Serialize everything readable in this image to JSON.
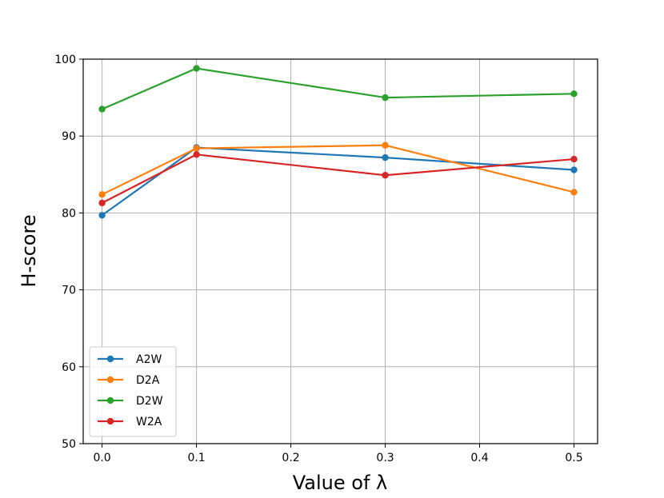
{
  "chart_data": {
    "type": "line",
    "xlabel": "Value of λ",
    "ylabel": "H-score",
    "x": [
      0.0,
      0.1,
      0.3,
      0.5
    ],
    "xlim": [
      -0.02,
      0.525
    ],
    "ylim": [
      50,
      100
    ],
    "xticks": [
      "0.0",
      "0.1",
      "0.2",
      "0.3",
      "0.4",
      "0.5"
    ],
    "xtick_values": [
      0.0,
      0.1,
      0.2,
      0.3,
      0.4,
      0.5
    ],
    "yticks": [
      "50",
      "60",
      "70",
      "80",
      "90",
      "100"
    ],
    "ytick_values": [
      50,
      60,
      70,
      80,
      90,
      100
    ],
    "grid": true,
    "legend_position": "lower-left",
    "series": [
      {
        "name": "A2W",
        "color": "#1f77b4",
        "values": [
          79.7,
          88.5,
          87.2,
          85.6
        ]
      },
      {
        "name": "D2A",
        "color": "#ff7f0e",
        "values": [
          82.4,
          88.4,
          88.8,
          82.7
        ]
      },
      {
        "name": "D2W",
        "color": "#2ca02c",
        "values": [
          93.5,
          98.8,
          95.0,
          95.5
        ]
      },
      {
        "name": "W2A",
        "color": "#d62728",
        "values": [
          81.3,
          87.6,
          84.9,
          87.0
        ]
      }
    ]
  }
}
